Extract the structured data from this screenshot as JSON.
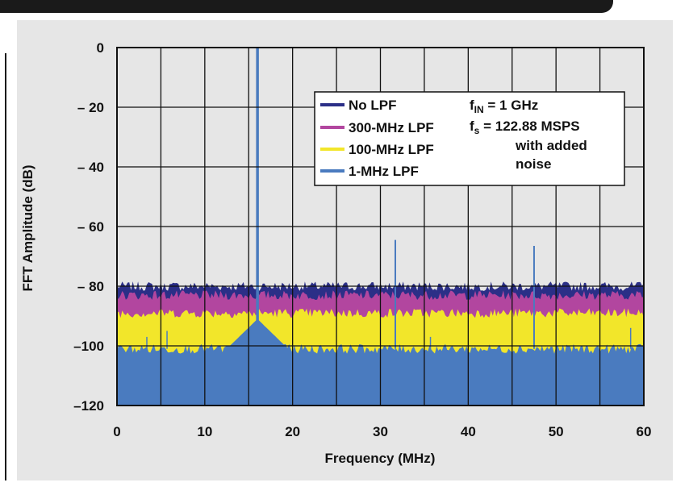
{
  "colors": {
    "no_lpf": "#2b2f87",
    "lpf_300": "#b2469f",
    "lpf_100": "#f2e62a",
    "lpf_1": "#4a7bbf",
    "panel": "#e6e6e6",
    "grid": "#111111"
  },
  "legend": {
    "items": [
      "No LPF",
      "300-MHz LPF",
      "100-MHz LPF",
      "1-MHz LPF"
    ],
    "note": {
      "fin_base": "f",
      "fin_sub": "IN",
      "fin_rest": " = 1 GHz",
      "fs_base": "f",
      "fs_sub": "s",
      "fs_rest": " = 122.88 MSPS",
      "line3": "with added",
      "line4": "noise"
    }
  },
  "chart_data": {
    "type": "area",
    "xlabel": "Frequency (MHz)",
    "ylabel": "FFT Amplitude (dB)",
    "xlim": [
      0,
      60
    ],
    "ylim": [
      -120,
      0
    ],
    "xticks": [
      0,
      10,
      20,
      30,
      40,
      50,
      60
    ],
    "yticks": [
      0,
      -20,
      -40,
      -60,
      -80,
      -100,
      -120
    ],
    "ytick_labels": [
      "0",
      "– 20",
      "– 40",
      "– 60",
      "– 80",
      "–100",
      "–120"
    ],
    "grid_x_step": 5,
    "grid_y_step": 20,
    "grid": true,
    "legend_position": "top-right",
    "series": [
      {
        "name": "No LPF",
        "noise_floor_top_db": -80,
        "noise_floor_low_db": -83
      },
      {
        "name": "300-MHz LPF",
        "noise_floor_top_db": -83,
        "noise_floor_low_db": -89
      },
      {
        "name": "100-MHz LPF",
        "noise_floor_top_db": -89,
        "noise_floor_low_db": -101
      },
      {
        "name": "1-MHz LPF",
        "noise_floor_top_db": -101,
        "noise_floor_low_db": -120
      }
    ],
    "peaks": [
      {
        "x": 16.0,
        "y": 0
      },
      {
        "x": 31.7,
        "y": -64.5
      },
      {
        "x": 47.5,
        "y": -66.5
      }
    ],
    "spurs": [
      {
        "x": 3.4,
        "y": -97
      },
      {
        "x": 5.7,
        "y": -95
      },
      {
        "x": 14.9,
        "y": -95
      },
      {
        "x": 35.7,
        "y": -97
      },
      {
        "x": 58.5,
        "y": -94
      }
    ],
    "skirt": {
      "center": 16.0,
      "top_db": -91,
      "width_mhz": 3.5
    }
  }
}
